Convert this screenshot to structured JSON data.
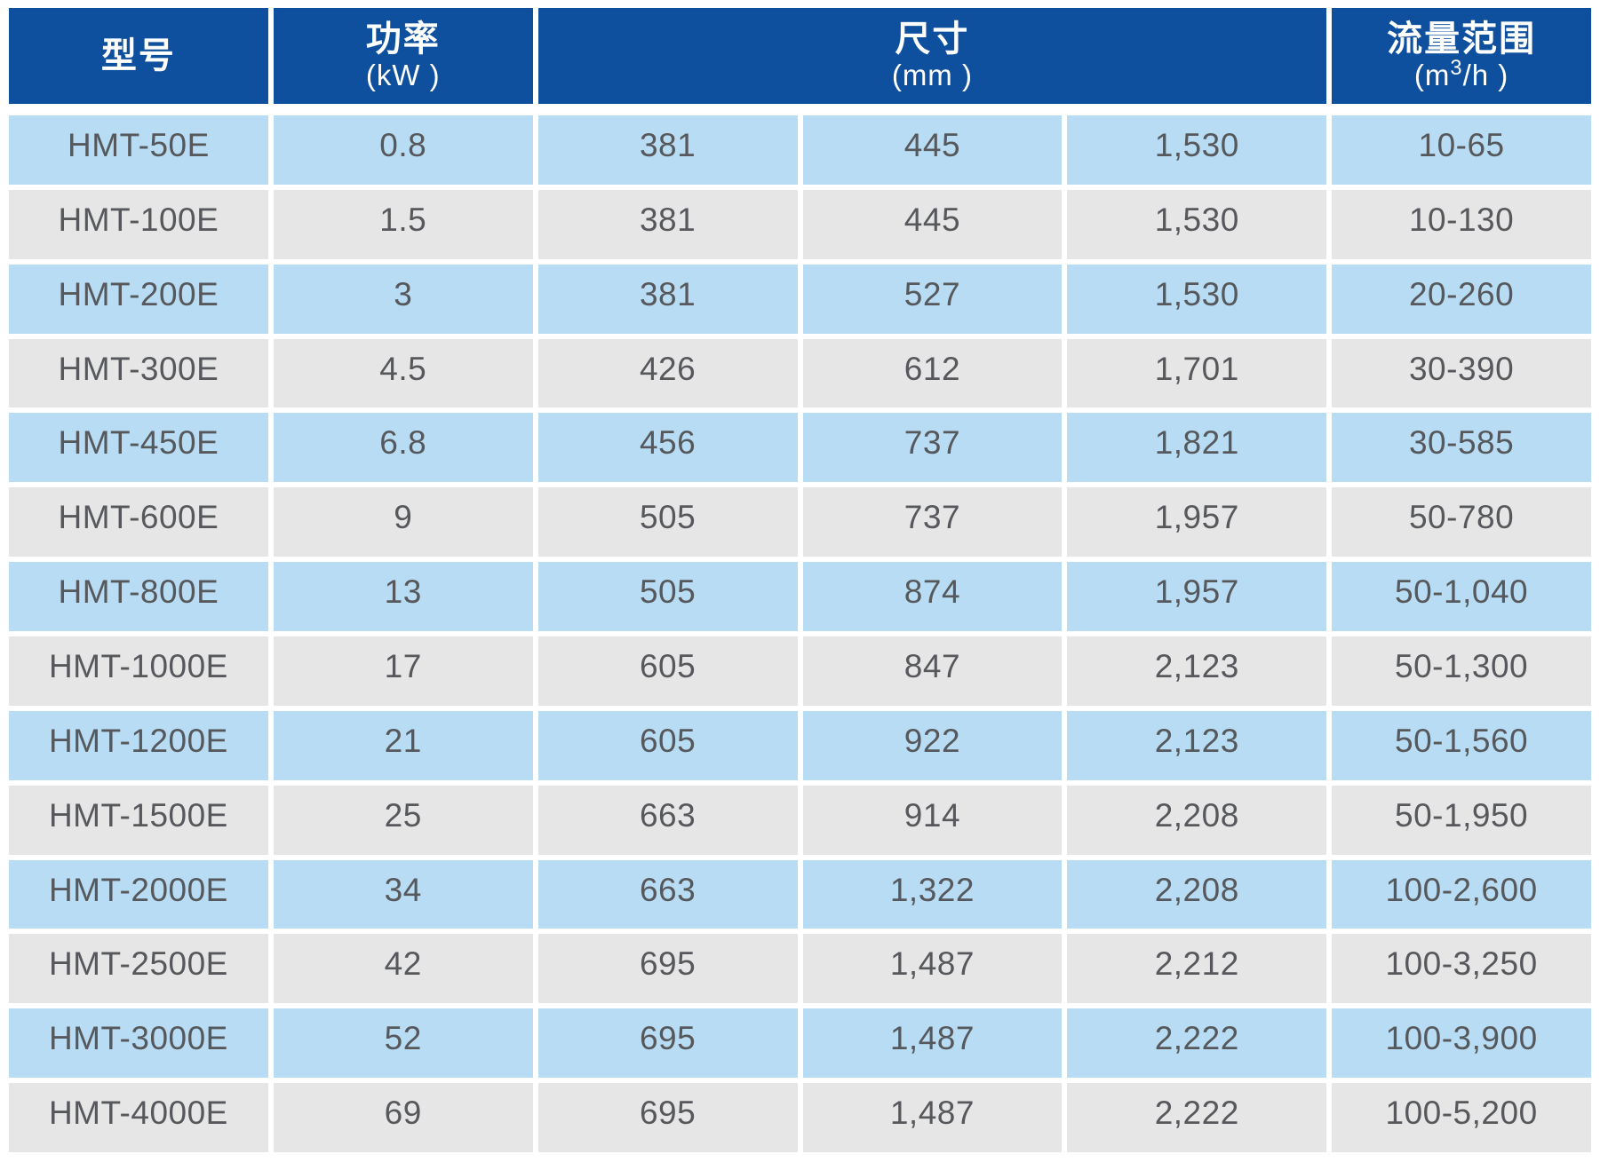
{
  "table": {
    "header": {
      "model_title": "型号",
      "power_title": "功率",
      "power_unit": "(kW )",
      "dims_title": "尺寸",
      "dims_unit": "(mm )",
      "flow_title": "流量范围",
      "flow_unit_prefix": "(m",
      "flow_unit_sup": "3",
      "flow_unit_suffix": "/h )"
    },
    "rows": [
      {
        "model": "HMT-50E",
        "power": "0.8",
        "dims": [
          "381",
          "445",
          "1,530"
        ],
        "flow": "10-65"
      },
      {
        "model": "HMT-100E",
        "power": "1.5",
        "dims": [
          "381",
          "445",
          "1,530"
        ],
        "flow": "10-130"
      },
      {
        "model": "HMT-200E",
        "power": "3",
        "dims": [
          "381",
          "527",
          "1,530"
        ],
        "flow": "20-260"
      },
      {
        "model": "HMT-300E",
        "power": "4.5",
        "dims": [
          "426",
          "612",
          "1,701"
        ],
        "flow": "30-390"
      },
      {
        "model": "HMT-450E",
        "power": "6.8",
        "dims": [
          "456",
          "737",
          "1,821"
        ],
        "flow": "30-585"
      },
      {
        "model": "HMT-600E",
        "power": "9",
        "dims": [
          "505",
          "737",
          "1,957"
        ],
        "flow": "50-780"
      },
      {
        "model": "HMT-800E",
        "power": "13",
        "dims": [
          "505",
          "874",
          "1,957"
        ],
        "flow": "50-1,040"
      },
      {
        "model": "HMT-1000E",
        "power": "17",
        "dims": [
          "605",
          "847",
          "2,123"
        ],
        "flow": "50-1,300"
      },
      {
        "model": "HMT-1200E",
        "power": "21",
        "dims": [
          "605",
          "922",
          "2,123"
        ],
        "flow": "50-1,560"
      },
      {
        "model": "HMT-1500E",
        "power": "25",
        "dims": [
          "663",
          "914",
          "2,208"
        ],
        "flow": "50-1,950"
      },
      {
        "model": "HMT-2000E",
        "power": "34",
        "dims": [
          "663",
          "1,322",
          "2,208"
        ],
        "flow": "100-2,600"
      },
      {
        "model": "HMT-2500E",
        "power": "42",
        "dims": [
          "695",
          "1,487",
          "2,212"
        ],
        "flow": "100-3,250"
      },
      {
        "model": "HMT-3000E",
        "power": "52",
        "dims": [
          "695",
          "1,487",
          "2,222"
        ],
        "flow": "100-3,900"
      },
      {
        "model": "HMT-4000E",
        "power": "69",
        "dims": [
          "695",
          "1,487",
          "2,222"
        ],
        "flow": "100-5,200"
      }
    ]
  },
  "colors": {
    "header_bg": "#0f509e",
    "header_text": "#ffffff",
    "row_blue": "#b7dcf4",
    "row_gray": "#e6e6e7",
    "cell_text": "#56585b",
    "background": "#ffffff"
  }
}
